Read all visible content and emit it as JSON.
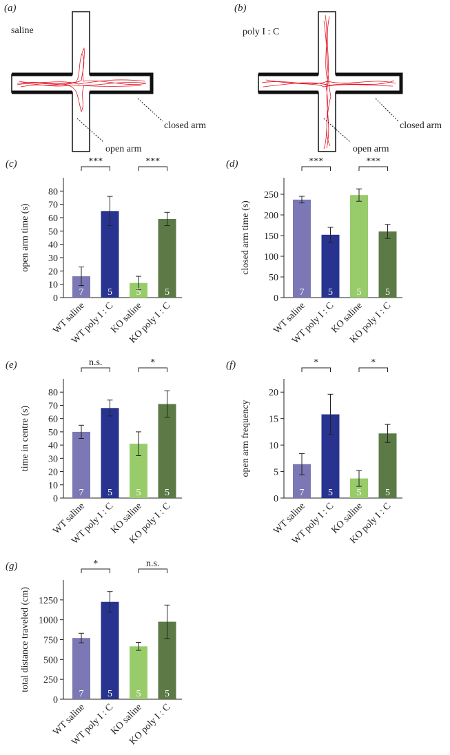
{
  "maze_panels": [
    {
      "label": "(a)",
      "condition": "saline",
      "closed_arm": "closed arm",
      "open_arm": "open arm"
    },
    {
      "label": "(b)",
      "condition": "poly I : C",
      "closed_arm": "closed arm",
      "open_arm": "open arm"
    }
  ],
  "chart_data": [
    {
      "type": "bar",
      "label": "(c)",
      "ylabel": "open arm time (s)",
      "categories": [
        "WT saline",
        "WT poly I : C",
        "KO saline",
        "KO poly I : C"
      ],
      "colors": [
        "#7b78b5",
        "#27338f",
        "#98cc6b",
        "#5b7a45"
      ],
      "values": [
        16,
        65,
        11,
        59
      ],
      "errors": [
        7,
        11,
        5,
        5
      ],
      "n": [
        7,
        5,
        5,
        5
      ],
      "ylim": [
        0,
        90
      ],
      "yticks": [
        0,
        10,
        20,
        30,
        40,
        50,
        60,
        70,
        80
      ],
      "significance": [
        {
          "groups": [
            0,
            1
          ],
          "label": "***"
        },
        {
          "groups": [
            2,
            3
          ],
          "label": "***"
        }
      ]
    },
    {
      "type": "bar",
      "label": "(d)",
      "ylabel": "closed arm time (s)",
      "categories": [
        "WT saline",
        "WT poly I : C",
        "KO saline",
        "KO poly I : C"
      ],
      "colors": [
        "#7b78b5",
        "#27338f",
        "#98cc6b",
        "#5b7a45"
      ],
      "values": [
        237,
        152,
        248,
        160
      ],
      "errors": [
        8,
        18,
        15,
        17
      ],
      "n": [
        7,
        5,
        5,
        5
      ],
      "ylim": [
        0,
        290
      ],
      "yticks": [
        0,
        50,
        100,
        150,
        200,
        250
      ],
      "significance": [
        {
          "groups": [
            0,
            1
          ],
          "label": "***"
        },
        {
          "groups": [
            2,
            3
          ],
          "label": "***"
        }
      ]
    },
    {
      "type": "bar",
      "label": "(e)",
      "ylabel": "time in centre (s)",
      "categories": [
        "WT saline",
        "WT poly I : C",
        "KO saline",
        "KO poly I : C"
      ],
      "colors": [
        "#7b78b5",
        "#27338f",
        "#98cc6b",
        "#5b7a45"
      ],
      "values": [
        50,
        68,
        41,
        71
      ],
      "errors": [
        5,
        6,
        9,
        10
      ],
      "n": [
        7,
        5,
        5,
        5
      ],
      "ylim": [
        0,
        90
      ],
      "yticks": [
        0,
        10,
        20,
        30,
        40,
        50,
        60,
        70,
        80
      ],
      "significance": [
        {
          "groups": [
            0,
            1
          ],
          "label": "n.s."
        },
        {
          "groups": [
            2,
            3
          ],
          "label": "*"
        }
      ]
    },
    {
      "type": "bar",
      "label": "(f)",
      "ylabel": "open arm frequency",
      "categories": [
        "WT saline",
        "WT poly I : C",
        "KO saline",
        "KO poly I : C"
      ],
      "colors": [
        "#7b78b5",
        "#27338f",
        "#98cc6b",
        "#5b7a45"
      ],
      "values": [
        6.4,
        15.8,
        3.7,
        12.2
      ],
      "errors": [
        2,
        3.8,
        1.5,
        1.7
      ],
      "n": [
        7,
        5,
        5,
        5
      ],
      "ylim": [
        0,
        22.5
      ],
      "yticks": [
        0,
        5,
        10,
        15,
        20
      ],
      "significance": [
        {
          "groups": [
            0,
            1
          ],
          "label": "*"
        },
        {
          "groups": [
            2,
            3
          ],
          "label": "*"
        }
      ]
    },
    {
      "type": "bar",
      "label": "(g)",
      "ylabel": "total distance traveled (cm)",
      "categories": [
        "WT saline",
        "WT poly I : C",
        "KO saline",
        "KO poly I : C"
      ],
      "colors": [
        "#7b78b5",
        "#27338f",
        "#98cc6b",
        "#5b7a45"
      ],
      "values": [
        770,
        1225,
        665,
        975
      ],
      "errors": [
        60,
        130,
        50,
        210
      ],
      "n": [
        7,
        5,
        5,
        5
      ],
      "ylim": [
        0,
        1500
      ],
      "yticks": [
        0,
        250,
        500,
        750,
        1000,
        1250
      ],
      "significance": [
        {
          "groups": [
            0,
            1
          ],
          "label": "*"
        },
        {
          "groups": [
            2,
            3
          ],
          "label": "n.s."
        }
      ]
    }
  ]
}
